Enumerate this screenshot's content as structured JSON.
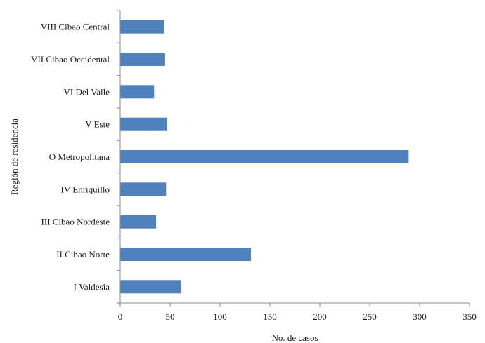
{
  "chart_data": {
    "type": "bar",
    "orientation": "horizontal",
    "categories": [
      "VIII Cibao Central",
      "VII Cibao Occidental",
      "VI Del Valle",
      "V Este",
      "O Metropolitana",
      "IV Enriquillo",
      "III Cibao Nordeste",
      "II Cibao Norte",
      "I Valdesia"
    ],
    "values": [
      44,
      45,
      34,
      47,
      289,
      46,
      36,
      131,
      61
    ],
    "xlabel": "No. de casos",
    "ylabel": "Región de residencia",
    "xlim": [
      0,
      350
    ],
    "xticks": [
      0,
      50,
      100,
      150,
      200,
      250,
      300,
      350
    ],
    "grid": false,
    "legend": "none",
    "bar_color": "#4f81bd"
  }
}
